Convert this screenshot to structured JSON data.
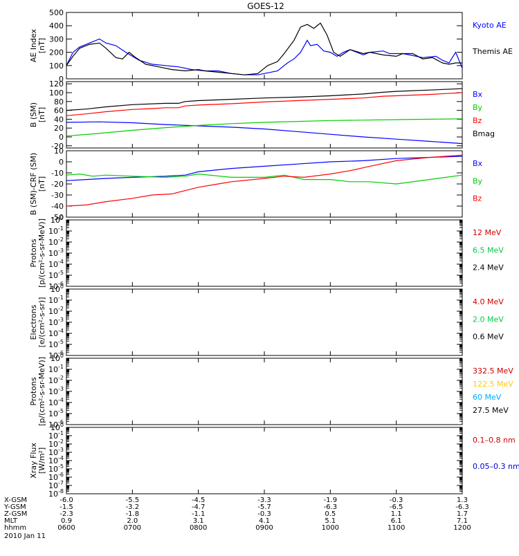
{
  "title": "GOES-12",
  "chart_data": [
    {
      "id": "ae",
      "type": "line",
      "ylabel": [
        "AE Index",
        "[nT]"
      ],
      "ylim": [
        0,
        500
      ],
      "yscale": "linear",
      "yticks": [
        0,
        100,
        200,
        300,
        400,
        500
      ],
      "series": [
        {
          "name": "Kyoto AE",
          "color": "#0000ff",
          "points": [
            [
              6.0,
              100
            ],
            [
              6.1,
              200
            ],
            [
              6.2,
              240
            ],
            [
              6.35,
              270
            ],
            [
              6.5,
              300
            ],
            [
              6.6,
              270
            ],
            [
              6.75,
              250
            ],
            [
              6.9,
              200
            ],
            [
              7.0,
              170
            ],
            [
              7.1,
              140
            ],
            [
              7.3,
              110
            ],
            [
              7.5,
              100
            ],
            [
              7.7,
              90
            ],
            [
              7.9,
              70
            ],
            [
              8.1,
              60
            ],
            [
              8.3,
              60
            ],
            [
              8.5,
              40
            ],
            [
              8.7,
              30
            ],
            [
              8.9,
              30
            ],
            [
              9.0,
              40
            ],
            [
              9.2,
              60
            ],
            [
              9.35,
              120
            ],
            [
              9.45,
              150
            ],
            [
              9.55,
              200
            ],
            [
              9.65,
              290
            ],
            [
              9.7,
              250
            ],
            [
              9.8,
              260
            ],
            [
              9.9,
              210
            ],
            [
              10.0,
              200
            ],
            [
              10.1,
              170
            ],
            [
              10.2,
              200
            ],
            [
              10.3,
              220
            ],
            [
              10.5,
              180
            ],
            [
              10.6,
              200
            ],
            [
              10.8,
              210
            ],
            [
              10.9,
              190
            ],
            [
              11.1,
              190
            ],
            [
              11.2,
              180
            ],
            [
              11.4,
              160
            ],
            [
              11.6,
              170
            ],
            [
              11.7,
              140
            ],
            [
              11.8,
              120
            ],
            [
              11.9,
              200
            ],
            [
              12.0,
              80
            ]
          ]
        },
        {
          "name": "Themis AE",
          "color": "#000000",
          "points": [
            [
              6.0,
              100
            ],
            [
              6.1,
              170
            ],
            [
              6.2,
              230
            ],
            [
              6.35,
              260
            ],
            [
              6.5,
              270
            ],
            [
              6.6,
              230
            ],
            [
              6.75,
              160
            ],
            [
              6.85,
              150
            ],
            [
              6.95,
              200
            ],
            [
              7.05,
              160
            ],
            [
              7.2,
              110
            ],
            [
              7.4,
              90
            ],
            [
              7.6,
              70
            ],
            [
              7.8,
              60
            ],
            [
              8.0,
              70
            ],
            [
              8.1,
              60
            ],
            [
              8.3,
              50
            ],
            [
              8.5,
              40
            ],
            [
              8.7,
              30
            ],
            [
              8.9,
              40
            ],
            [
              9.05,
              100
            ],
            [
              9.2,
              130
            ],
            [
              9.3,
              190
            ],
            [
              9.45,
              290
            ],
            [
              9.55,
              390
            ],
            [
              9.65,
              410
            ],
            [
              9.75,
              380
            ],
            [
              9.85,
              420
            ],
            [
              9.95,
              330
            ],
            [
              10.05,
              200
            ],
            [
              10.15,
              170
            ],
            [
              10.3,
              220
            ],
            [
              10.5,
              190
            ],
            [
              10.6,
              200
            ],
            [
              10.8,
              180
            ],
            [
              11.0,
              170
            ],
            [
              11.1,
              190
            ],
            [
              11.25,
              190
            ],
            [
              11.4,
              150
            ],
            [
              11.55,
              160
            ],
            [
              11.7,
              120
            ],
            [
              11.8,
              110
            ],
            [
              11.9,
              120
            ],
            [
              12.0,
              120
            ]
          ]
        }
      ],
      "legend": [
        {
          "text": "Kyoto AE",
          "color": "#0000ff"
        },
        {
          "text": "Themis AE",
          "color": "#000000"
        }
      ]
    },
    {
      "id": "bsm",
      "type": "line",
      "ylabel": [
        "B (SM)",
        "[nT]"
      ],
      "ylim": [
        -25,
        125
      ],
      "yscale": "linear",
      "yticks": [
        -20,
        0,
        20,
        40,
        60,
        80,
        100,
        120
      ],
      "series": [
        {
          "name": "Bx",
          "color": "#0000ff",
          "points": [
            [
              6.0,
              33
            ],
            [
              6.5,
              34
            ],
            [
              7.0,
              32
            ],
            [
              7.5,
              28
            ],
            [
              8.0,
              25
            ],
            [
              8.5,
              22
            ],
            [
              9.0,
              18
            ],
            [
              9.5,
              12
            ],
            [
              10.0,
              6
            ],
            [
              10.5,
              0
            ],
            [
              11.0,
              -5
            ],
            [
              11.5,
              -10
            ],
            [
              12.0,
              -15
            ]
          ]
        },
        {
          "name": "By",
          "color": "#00cc00",
          "points": [
            [
              6.0,
              2
            ],
            [
              6.5,
              8
            ],
            [
              7.0,
              15
            ],
            [
              7.5,
              21
            ],
            [
              8.0,
              26
            ],
            [
              8.5,
              30
            ],
            [
              9.0,
              33
            ],
            [
              9.5,
              35
            ],
            [
              10.0,
              37
            ],
            [
              10.5,
              38
            ],
            [
              11.0,
              39
            ],
            [
              11.5,
              40
            ],
            [
              12.0,
              41
            ]
          ]
        },
        {
          "name": "Bz",
          "color": "#ff0000",
          "points": [
            [
              6.0,
              48
            ],
            [
              6.3,
              52
            ],
            [
              6.6,
              57
            ],
            [
              7.0,
              62
            ],
            [
              7.3,
              64
            ],
            [
              7.5,
              66
            ],
            [
              7.7,
              66
            ],
            [
              7.8,
              70
            ],
            [
              8.0,
              72
            ],
            [
              8.5,
              75
            ],
            [
              9.0,
              79
            ],
            [
              9.5,
              82
            ],
            [
              10.0,
              85
            ],
            [
              10.5,
              88
            ],
            [
              10.8,
              92
            ],
            [
              11.0,
              93
            ],
            [
              11.5,
              96
            ],
            [
              12.0,
              100
            ]
          ]
        },
        {
          "name": "Bmag",
          "color": "#000000",
          "points": [
            [
              6.0,
              60
            ],
            [
              6.3,
              63
            ],
            [
              6.6,
              68
            ],
            [
              7.0,
              73
            ],
            [
              7.5,
              76
            ],
            [
              7.7,
              76
            ],
            [
              7.8,
              80
            ],
            [
              8.0,
              82
            ],
            [
              8.5,
              85
            ],
            [
              9.0,
              88
            ],
            [
              9.5,
              90
            ],
            [
              10.0,
              93
            ],
            [
              10.5,
              97
            ],
            [
              10.8,
              101
            ],
            [
              11.0,
              103
            ],
            [
              11.5,
              106
            ],
            [
              12.0,
              109
            ]
          ]
        }
      ],
      "legend": [
        {
          "text": "Bx",
          "color": "#0000ff"
        },
        {
          "text": "By",
          "color": "#00cc00"
        },
        {
          "text": "Bz",
          "color": "#ff0000"
        },
        {
          "text": "Bmag",
          "color": "#000000"
        }
      ]
    },
    {
      "id": "bdiff",
      "type": "line",
      "ylabel": [
        "B (SM)-CRF (SM)",
        "[nT]"
      ],
      "ylim": [
        -50,
        10
      ],
      "yscale": "linear",
      "yticks": [
        -50,
        -40,
        -30,
        -20,
        -10,
        0,
        10
      ],
      "series": [
        {
          "name": "Bx",
          "color": "#0000ff",
          "points": [
            [
              6.0,
              -17
            ],
            [
              6.3,
              -16
            ],
            [
              6.6,
              -15
            ],
            [
              7.0,
              -14
            ],
            [
              7.5,
              -13
            ],
            [
              7.8,
              -12
            ],
            [
              8.0,
              -9
            ],
            [
              8.5,
              -6
            ],
            [
              9.0,
              -4
            ],
            [
              9.5,
              -2
            ],
            [
              10.0,
              0
            ],
            [
              10.5,
              1
            ],
            [
              11.0,
              3
            ],
            [
              11.5,
              4
            ],
            [
              12.0,
              5
            ]
          ]
        },
        {
          "name": "By",
          "color": "#00cc00",
          "points": [
            [
              6.0,
              -12
            ],
            [
              6.2,
              -11
            ],
            [
              6.4,
              -13
            ],
            [
              6.6,
              -12
            ],
            [
              7.0,
              -13
            ],
            [
              7.5,
              -14
            ],
            [
              7.8,
              -13
            ],
            [
              8.0,
              -11
            ],
            [
              8.5,
              -14
            ],
            [
              9.0,
              -14
            ],
            [
              9.3,
              -12
            ],
            [
              9.6,
              -16
            ],
            [
              10.0,
              -16
            ],
            [
              10.3,
              -18
            ],
            [
              10.6,
              -18
            ],
            [
              11.0,
              -20
            ],
            [
              11.5,
              -16
            ],
            [
              12.0,
              -12
            ]
          ]
        },
        {
          "name": "Bz",
          "color": "#ff0000",
          "points": [
            [
              6.0,
              -40
            ],
            [
              6.3,
              -39
            ],
            [
              6.6,
              -36
            ],
            [
              7.0,
              -33
            ],
            [
              7.3,
              -30
            ],
            [
              7.6,
              -29
            ],
            [
              7.8,
              -26
            ],
            [
              8.0,
              -23
            ],
            [
              8.3,
              -20
            ],
            [
              8.5,
              -18
            ],
            [
              9.0,
              -15
            ],
            [
              9.3,
              -13
            ],
            [
              9.6,
              -14
            ],
            [
              10.0,
              -11
            ],
            [
              10.3,
              -8
            ],
            [
              10.6,
              -4
            ],
            [
              11.0,
              1
            ],
            [
              11.5,
              4
            ],
            [
              12.0,
              6
            ]
          ]
        }
      ],
      "legend": [
        {
          "text": "Bx",
          "color": "#0000ff"
        },
        {
          "text": "By",
          "color": "#00cc00"
        },
        {
          "text": "Bz",
          "color": "#ff0000"
        }
      ]
    },
    {
      "id": "protons1",
      "type": "line",
      "ylabel": [
        "Protons",
        "[p/(cm²-s-sr-MeV)]"
      ],
      "ylim": [
        -6,
        0
      ],
      "yscale": "log",
      "yticks": [
        -6,
        -5,
        -4,
        -3,
        -2,
        -1,
        0
      ],
      "series": [],
      "legend": [
        {
          "text": "12 MeV",
          "color": "#cc0000"
        },
        {
          "text": "6.5 MeV",
          "color": "#00cc44"
        },
        {
          "text": "2.4 MeV",
          "color": "#000000"
        }
      ]
    },
    {
      "id": "electrons",
      "type": "line",
      "ylabel": [
        "Electrons",
        "[e/(cm²-s-sr)]"
      ],
      "ylim": [
        -6,
        0
      ],
      "yscale": "log",
      "yticks": [
        -6,
        -5,
        -4,
        -3,
        -2,
        -1,
        0
      ],
      "series": [],
      "legend": [
        {
          "text": "4.0 MeV",
          "color": "#cc0000"
        },
        {
          "text": "2.0 MeV",
          "color": "#00cc44"
        },
        {
          "text": "0.6 MeV",
          "color": "#000000"
        }
      ]
    },
    {
      "id": "protons2",
      "type": "line",
      "ylabel": [
        "Protons",
        "[p/(cm²-s-sr-MeV)]"
      ],
      "ylim": [
        -6,
        0
      ],
      "yscale": "log",
      "yticks": [
        -6,
        -5,
        -4,
        -3,
        -2,
        -1,
        0
      ],
      "series": [],
      "legend": [
        {
          "text": "332.5 MeV",
          "color": "#cc0000"
        },
        {
          "text": "122.5 MeV",
          "color": "#ffcc00"
        },
        {
          "text": "60 MeV",
          "color": "#00aaff"
        },
        {
          "text": "27.5 MeV",
          "color": "#000000"
        }
      ]
    },
    {
      "id": "xray",
      "type": "line",
      "ylabel": [
        "Xray Flux",
        "[W/m²]"
      ],
      "ylim": [
        -8,
        0
      ],
      "yscale": "log",
      "yticks": [
        -8,
        -7,
        -6,
        -5,
        -4,
        -3,
        -2,
        -1,
        0
      ],
      "series": [],
      "legend": [
        {
          "text": "0.1–0.8 nm",
          "color": "#cc0000"
        },
        {
          "text": "0.05–0.3 nm",
          "color": "#0000cc"
        }
      ]
    }
  ],
  "xaxis": {
    "xlim": [
      6.0,
      12.0
    ],
    "ticks": [
      6,
      7,
      8,
      9,
      10,
      11,
      12
    ],
    "rows": [
      {
        "label": "X-GSM",
        "values": [
          "-6.0",
          "-5.5",
          "-4.5",
          "-3.3",
          "-1.9",
          "-0.3",
          "1.3"
        ]
      },
      {
        "label": "Y-GSM",
        "values": [
          "-1.5",
          "-3.2",
          "-4.7",
          "-5.7",
          "-6.3",
          "-6.5",
          "-6.3"
        ]
      },
      {
        "label": "Z-GSM",
        "values": [
          "-2.3",
          "-1.8",
          "-1.1",
          "-0.3",
          "0.5",
          "1.1",
          "1.7"
        ]
      },
      {
        "label": "MLT",
        "values": [
          "0.9",
          "2.0",
          "3.1",
          "4.1",
          "5.1",
          "6.1",
          "7.1"
        ]
      },
      {
        "label": "hhmm",
        "values": [
          "0600",
          "0700",
          "0800",
          "0900",
          "1000",
          "1100",
          "1200"
        ]
      }
    ],
    "date": "2010 Jan 11"
  }
}
